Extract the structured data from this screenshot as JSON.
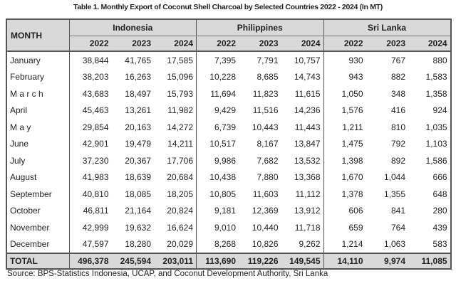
{
  "title": "Table 1. Monthly Export of Coconut Shell Charcoal by Selected Countries 2022 - 2024 (In MT)",
  "header": {
    "month": "MONTH",
    "countries": [
      "Indonesia",
      "Philippines",
      "Sri Lanka"
    ],
    "years": [
      "2022",
      "2023",
      "2024"
    ]
  },
  "rows": [
    {
      "month": "January",
      "values": [
        "38,844",
        "41,765",
        "17,585",
        "7,395",
        "7,791",
        "10,757",
        "930",
        "767",
        "880"
      ]
    },
    {
      "month": "February",
      "values": [
        "38,203",
        "16,263",
        "15,096",
        "10,228",
        "8,685",
        "14,743",
        "943",
        "882",
        "1,583"
      ]
    },
    {
      "month": "M a r c h",
      "values": [
        "43,683",
        "18,497",
        "15,793",
        "11,694",
        "11,823",
        "11,615",
        "1,050",
        "348",
        "1,358"
      ]
    },
    {
      "month": "April",
      "values": [
        "45,463",
        "13,261",
        "11,982",
        "9,429",
        "11,516",
        "14,236",
        "1,576",
        "416",
        "924"
      ]
    },
    {
      "month": "M a y",
      "values": [
        "29,854",
        "20,163",
        "14,272",
        "6,739",
        "10,443",
        "11,443",
        "1,211",
        "810",
        "1,035"
      ]
    },
    {
      "month": "June",
      "values": [
        "42,901",
        "19,479",
        "14,211",
        "10,517",
        "8,167",
        "13,847",
        "1,475",
        "792",
        "1,103"
      ]
    },
    {
      "month": "July",
      "values": [
        "37,230",
        "20,367",
        "17,706",
        "9,986",
        "7,682",
        "13,532",
        "1,398",
        "892",
        "1,586"
      ]
    },
    {
      "month": "August",
      "values": [
        "41,983",
        "18,639",
        "20,684",
        "10,438",
        "7,880",
        "13,368",
        "1,670",
        "1,044",
        "666"
      ]
    },
    {
      "month": "September",
      "values": [
        "40,810",
        "18,085",
        "18,205",
        "10,805",
        "11,603",
        "11,112",
        "1,378",
        "1,355",
        "648"
      ]
    },
    {
      "month": "October",
      "values": [
        "46,811",
        "21,164",
        "20,824",
        "9,181",
        "12,369",
        "13,912",
        "606",
        "841",
        "280"
      ]
    },
    {
      "month": "November",
      "values": [
        "42,999",
        "19,632",
        "16,624",
        "9,010",
        "10,440",
        "11,718",
        "659",
        "764",
        "439"
      ]
    },
    {
      "month": "December",
      "values": [
        "47,597",
        "18,280",
        "20,029",
        "8,268",
        "10,826",
        "9,262",
        "1,214",
        "1,063",
        "583"
      ]
    }
  ],
  "total": {
    "label": "TOTAL",
    "values": [
      "496,378",
      "245,594",
      "203,011",
      "113,690",
      "119,226",
      "149,545",
      "14,110",
      "9,974",
      "11,085"
    ]
  },
  "source": "Source: BPS-Statistics Indonesia, UCAP, and Coconut Development Authority, Sri Lanka"
}
